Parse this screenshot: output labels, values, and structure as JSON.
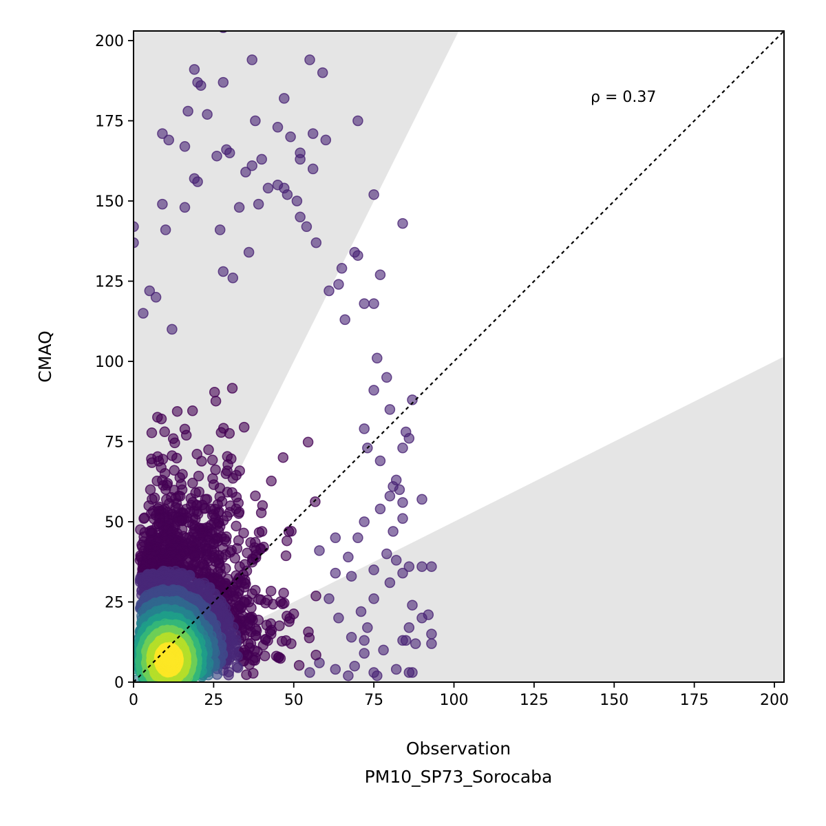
{
  "chart_data": {
    "type": "scatter",
    "xlabel_lines": [
      "Observation",
      "PM10_SP73_Sorocaba"
    ],
    "ylabel": "CMAQ",
    "annotation": "ρ = 0.37",
    "xlim": [
      0,
      203
    ],
    "ylim": [
      0,
      203
    ],
    "xticks": [
      0,
      25,
      50,
      75,
      100,
      125,
      150,
      175,
      200
    ],
    "yticks": [
      0,
      25,
      50,
      75,
      100,
      125,
      150,
      175,
      200
    ],
    "grid": false,
    "identity_line": true,
    "shaded_region_slopes": [
      0.5,
      2.0
    ],
    "colormap": "viridis",
    "colors": {
      "outlier": "#482374",
      "band": "#e5e5e5",
      "viridis": [
        "#440154",
        "#482878",
        "#3e4989",
        "#31688e",
        "#26828e",
        "#1f9e89",
        "#35b779",
        "#6ece58",
        "#b5de2b",
        "#fde725"
      ]
    },
    "n_points_approx": 4000,
    "density_peak": [
      11,
      7
    ],
    "highlighted_outliers": [
      [
        28,
        204
      ],
      [
        19,
        191
      ],
      [
        37,
        194
      ],
      [
        55,
        194
      ],
      [
        59,
        190
      ],
      [
        20,
        187
      ],
      [
        28,
        187
      ],
      [
        21,
        186
      ],
      [
        47,
        182
      ],
      [
        17,
        178
      ],
      [
        23,
        177
      ],
      [
        38,
        175
      ],
      [
        70,
        175
      ],
      [
        45,
        173
      ],
      [
        9,
        171
      ],
      [
        11,
        169
      ],
      [
        49,
        170
      ],
      [
        56,
        171
      ],
      [
        60,
        169
      ],
      [
        16,
        167
      ],
      [
        29,
        166
      ],
      [
        30,
        165
      ],
      [
        26,
        164
      ],
      [
        52,
        165
      ],
      [
        52,
        163
      ],
      [
        40,
        163
      ],
      [
        37,
        161
      ],
      [
        56,
        160
      ],
      [
        19,
        157
      ],
      [
        35,
        159
      ],
      [
        20,
        156
      ],
      [
        45,
        155
      ],
      [
        75,
        152
      ],
      [
        42,
        154
      ],
      [
        47,
        154
      ],
      [
        48,
        152
      ],
      [
        16,
        148
      ],
      [
        9,
        149
      ],
      [
        39,
        149
      ],
      [
        33,
        148
      ],
      [
        51,
        150
      ],
      [
        52,
        145
      ],
      [
        54,
        142
      ],
      [
        84,
        143
      ],
      [
        0,
        142
      ],
      [
        10,
        141
      ],
      [
        27,
        141
      ],
      [
        0,
        137
      ],
      [
        36,
        134
      ],
      [
        57,
        137
      ],
      [
        70,
        133
      ],
      [
        69,
        134
      ],
      [
        65,
        129
      ],
      [
        77,
        127
      ],
      [
        28,
        128
      ],
      [
        31,
        126
      ],
      [
        61,
        122
      ],
      [
        64,
        124
      ],
      [
        72,
        118
      ],
      [
        75,
        118
      ],
      [
        5,
        122
      ],
      [
        3,
        115
      ],
      [
        7,
        120
      ],
      [
        12,
        110
      ],
      [
        66,
        113
      ],
      [
        79,
        95
      ],
      [
        76,
        101
      ],
      [
        75,
        91
      ],
      [
        87,
        88
      ],
      [
        80,
        85
      ],
      [
        85,
        78
      ],
      [
        86,
        76
      ],
      [
        72,
        79
      ],
      [
        84,
        73
      ],
      [
        73,
        73
      ],
      [
        77,
        69
      ],
      [
        82,
        63
      ],
      [
        83,
        60
      ],
      [
        81,
        61
      ],
      [
        80,
        58
      ],
      [
        90,
        57
      ],
      [
        84,
        56
      ],
      [
        77,
        54
      ],
      [
        84,
        51
      ],
      [
        72,
        50
      ],
      [
        81,
        47
      ],
      [
        79,
        40
      ],
      [
        82,
        38
      ],
      [
        86,
        36
      ],
      [
        90,
        36
      ],
      [
        93,
        36
      ],
      [
        84,
        34
      ],
      [
        75,
        35
      ],
      [
        80,
        31
      ],
      [
        75,
        26
      ],
      [
        87,
        24
      ],
      [
        92,
        21
      ],
      [
        90,
        20
      ],
      [
        73,
        17
      ],
      [
        86,
        17
      ],
      [
        93,
        15
      ],
      [
        85,
        13
      ],
      [
        84,
        13
      ],
      [
        88,
        12
      ],
      [
        93,
        12
      ],
      [
        78,
        10
      ],
      [
        72,
        9
      ],
      [
        82,
        4
      ],
      [
        86,
        3
      ],
      [
        87,
        3
      ],
      [
        76,
        2
      ],
      [
        67,
        2
      ],
      [
        69,
        5
      ],
      [
        75,
        3
      ],
      [
        63,
        4
      ],
      [
        55,
        3
      ],
      [
        58,
        6
      ],
      [
        68,
        14
      ],
      [
        72,
        13
      ],
      [
        68,
        33
      ],
      [
        71,
        22
      ],
      [
        64,
        20
      ],
      [
        61,
        26
      ],
      [
        63,
        34
      ],
      [
        58,
        41
      ],
      [
        67,
        39
      ],
      [
        63,
        45
      ],
      [
        70,
        45
      ]
    ]
  }
}
